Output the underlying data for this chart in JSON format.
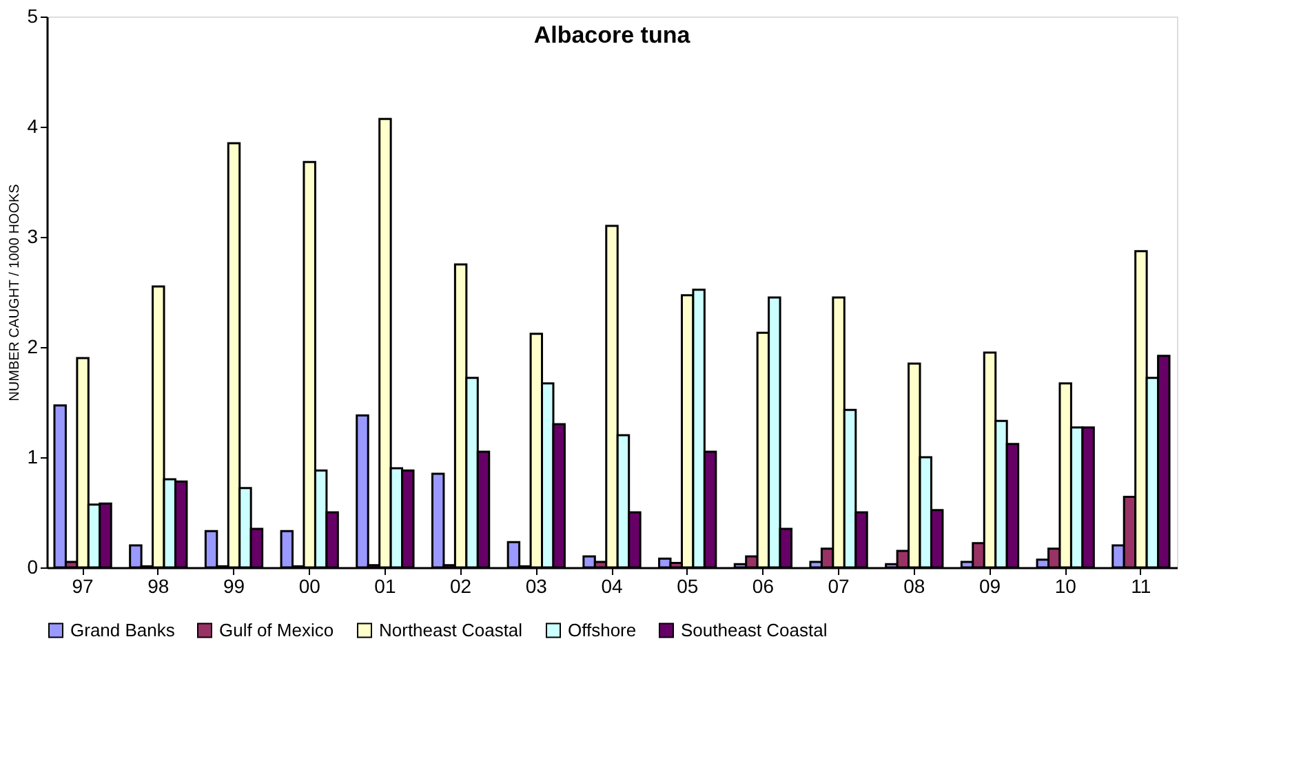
{
  "chart_data": {
    "type": "bar",
    "title": "Albacore tuna",
    "ylabel": "NUMBER CAUGHT / 1000 HOOKS",
    "categories": [
      "97",
      "98",
      "99",
      "00",
      "01",
      "02",
      "03",
      "04",
      "05",
      "06",
      "07",
      "08",
      "09",
      "10",
      "11"
    ],
    "series": [
      {
        "name": "Grand Banks",
        "color": "#9999ff",
        "values": [
          1.47,
          0.2,
          0.33,
          0.33,
          1.38,
          0.85,
          0.23,
          0.1,
          0.08,
          0.03,
          0.05,
          0.03,
          0.05,
          0.07,
          0.2
        ]
      },
      {
        "name": "Gulf of Mexico",
        "color": "#993366",
        "values": [
          0.05,
          0.01,
          0.01,
          0.01,
          0.02,
          0.02,
          0.01,
          0.05,
          0.04,
          0.1,
          0.17,
          0.15,
          0.22,
          0.17,
          0.64
        ]
      },
      {
        "name": "Northeast Coastal",
        "color": "#ffffcc",
        "values": [
          1.9,
          2.55,
          3.85,
          3.68,
          4.07,
          2.75,
          2.12,
          3.1,
          2.47,
          2.13,
          2.45,
          1.85,
          1.95,
          1.67,
          2.87
        ]
      },
      {
        "name": "Offshore",
        "color": "#ccffff",
        "values": [
          0.57,
          0.8,
          0.72,
          0.88,
          0.9,
          1.72,
          1.67,
          1.2,
          2.52,
          2.45,
          1.43,
          1.0,
          1.33,
          1.27,
          1.72
        ]
      },
      {
        "name": "Southeast Coastal",
        "color": "#660066",
        "values": [
          0.58,
          0.78,
          0.35,
          0.5,
          0.88,
          1.05,
          1.3,
          0.5,
          1.05,
          0.35,
          0.5,
          0.52,
          1.12,
          1.27,
          1.92
        ]
      }
    ],
    "ylim": [
      0,
      5
    ],
    "yticks": [
      0,
      1,
      2,
      3,
      4,
      5
    ],
    "grid": false,
    "legend": "bottom"
  }
}
